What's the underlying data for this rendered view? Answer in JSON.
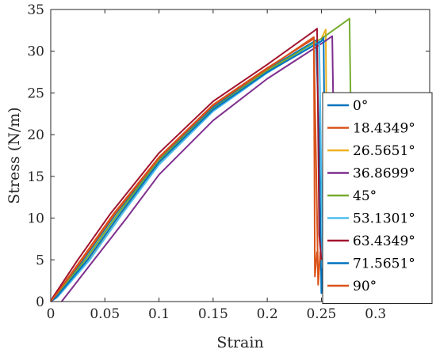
{
  "chart_data": {
    "type": "line",
    "xlabel": "Strain",
    "ylabel": "Stress (N/m)",
    "xlim": [
      0,
      0.35
    ],
    "ylim": [
      0,
      35
    ],
    "xticks": [
      0,
      0.05,
      0.1,
      0.15,
      0.2,
      0.25,
      0.3
    ],
    "xtick_labels": [
      "0",
      "0.05",
      "0.1",
      "0.15",
      "0.2",
      "0.25",
      "0.3"
    ],
    "yticks": [
      0,
      5,
      10,
      15,
      20,
      25,
      30,
      35
    ],
    "ytick_labels": [
      "0",
      "5",
      "10",
      "15",
      "20",
      "25",
      "30",
      "35"
    ],
    "grid": false,
    "legend_position": "lower-right",
    "series": [
      {
        "name": "0°",
        "color": "#0072BD",
        "points": [
          [
            0,
            0
          ],
          [
            0.004,
            0.5
          ],
          [
            0.03,
            5
          ],
          [
            0.06,
            10.5
          ],
          [
            0.1,
            17
          ],
          [
            0.15,
            23.3
          ],
          [
            0.2,
            27.8
          ],
          [
            0.245,
            31.3
          ],
          [
            0.248,
            20
          ],
          [
            0.25,
            1
          ],
          [
            0.252,
            7
          ]
        ]
      },
      {
        "name": "18.4349°",
        "color": "#D95319",
        "points": [
          [
            0,
            0
          ],
          [
            0.003,
            0.5
          ],
          [
            0.028,
            5
          ],
          [
            0.058,
            10.5
          ],
          [
            0.1,
            17.3
          ],
          [
            0.15,
            23.6
          ],
          [
            0.2,
            28
          ],
          [
            0.243,
            31.5
          ],
          [
            0.246,
            10
          ],
          [
            0.247,
            2
          ],
          [
            0.249,
            6
          ]
        ]
      },
      {
        "name": "26.5651°",
        "color": "#EDB120",
        "points": [
          [
            0,
            0
          ],
          [
            0.005,
            0.5
          ],
          [
            0.035,
            5
          ],
          [
            0.065,
            10.5
          ],
          [
            0.1,
            16.5
          ],
          [
            0.15,
            22.9
          ],
          [
            0.2,
            27.6
          ],
          [
            0.25,
            31.5
          ],
          [
            0.254,
            32.6
          ],
          [
            0.256,
            1
          ],
          [
            0.258,
            3
          ]
        ]
      },
      {
        "name": "36.8699°",
        "color": "#7E2F8E",
        "points": [
          [
            0.01,
            0
          ],
          [
            0.016,
            1
          ],
          [
            0.04,
            5
          ],
          [
            0.07,
            10
          ],
          [
            0.1,
            15.2
          ],
          [
            0.15,
            21.7
          ],
          [
            0.2,
            26.7
          ],
          [
            0.25,
            30.9
          ],
          [
            0.26,
            31.8
          ],
          [
            0.262,
            15
          ],
          [
            0.263,
            0
          ]
        ]
      },
      {
        "name": "45°",
        "color": "#77AC30",
        "points": [
          [
            0,
            0
          ],
          [
            0.004,
            0.5
          ],
          [
            0.032,
            5
          ],
          [
            0.062,
            10.5
          ],
          [
            0.1,
            16.9
          ],
          [
            0.15,
            23.1
          ],
          [
            0.2,
            27.7
          ],
          [
            0.25,
            31.5
          ],
          [
            0.276,
            33.9
          ],
          [
            0.278,
            14
          ],
          [
            0.278,
            5
          ]
        ]
      },
      {
        "name": "53.1301°",
        "color": "#4DBEEE",
        "points": [
          [
            0,
            0
          ],
          [
            0.006,
            0.5
          ],
          [
            0.036,
            5
          ],
          [
            0.066,
            10.5
          ],
          [
            0.1,
            16.4
          ],
          [
            0.15,
            22.8
          ],
          [
            0.2,
            27.4
          ],
          [
            0.248,
            31.2
          ],
          [
            0.25,
            15
          ],
          [
            0.251,
            4
          ]
        ]
      },
      {
        "name": "63.4349°",
        "color": "#A2142F",
        "points": [
          [
            0,
            0
          ],
          [
            0.002,
            0.5
          ],
          [
            0.025,
            5
          ],
          [
            0.055,
            10.5
          ],
          [
            0.1,
            17.8
          ],
          [
            0.15,
            24
          ],
          [
            0.2,
            28.4
          ],
          [
            0.244,
            32.5
          ],
          [
            0.246,
            32.7
          ],
          [
            0.248,
            8
          ],
          [
            0.25,
            5
          ]
        ]
      },
      {
        "name": "71.5651°",
        "color": "#0072BD",
        "points": [
          [
            0,
            0
          ],
          [
            0.005,
            0.5
          ],
          [
            0.034,
            5
          ],
          [
            0.064,
            10.5
          ],
          [
            0.1,
            16.7
          ],
          [
            0.15,
            23
          ],
          [
            0.2,
            27.5
          ],
          [
            0.25,
            31.2
          ],
          [
            0.252,
            31.6
          ],
          [
            0.254,
            5
          ]
        ]
      },
      {
        "name": "90°",
        "color": "#D95319",
        "points": [
          [
            0,
            0
          ],
          [
            0.003,
            0.5
          ],
          [
            0.029,
            5
          ],
          [
            0.059,
            10.5
          ],
          [
            0.1,
            17.2
          ],
          [
            0.15,
            23.5
          ],
          [
            0.2,
            27.9
          ],
          [
            0.243,
            31.7
          ],
          [
            0.244,
            3
          ],
          [
            0.246,
            6
          ]
        ]
      }
    ]
  }
}
